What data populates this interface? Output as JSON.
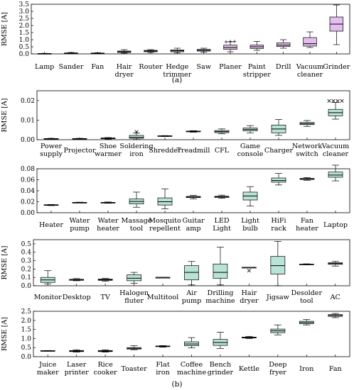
{
  "colors": {
    "purple_box": "#e3bfee",
    "green_box": "#b8e3d6",
    "median": "#000000",
    "frame": "#000000"
  },
  "subfigure_labels": [
    "(a)",
    "(b)"
  ],
  "chart_data": [
    {
      "type": "boxplot",
      "ylabel": "RMSE [A]",
      "ylim": [
        0,
        3.5
      ],
      "yticks": [
        "0.0",
        "0.5",
        "1.0",
        "1.5",
        "2.0",
        "2.5",
        "3.0",
        "3.5"
      ],
      "box_color": "#e3bfee",
      "categories": [
        "Lamp",
        "Sander",
        "Fan",
        "Hair dryer",
        "Router",
        "Hedge trimmer",
        "Saw",
        "Planer",
        "Paint stripper",
        "Drill",
        "Vacuum cleaner",
        "Grinder"
      ],
      "boxes": [
        {
          "min": 0.0,
          "q1": 0.01,
          "median": 0.02,
          "q3": 0.03,
          "max": 0.04,
          "outliers": []
        },
        {
          "min": 0.02,
          "q1": 0.04,
          "median": 0.05,
          "q3": 0.07,
          "max": 0.1,
          "outliers": []
        },
        {
          "min": 0.02,
          "q1": 0.03,
          "median": 0.05,
          "q3": 0.06,
          "max": 0.08,
          "outliers": []
        },
        {
          "min": 0.05,
          "q1": 0.1,
          "median": 0.15,
          "q3": 0.2,
          "max": 0.3,
          "outliers": []
        },
        {
          "min": 0.1,
          "q1": 0.15,
          "median": 0.2,
          "q3": 0.25,
          "max": 0.3,
          "outliers": []
        },
        {
          "min": 0.08,
          "q1": 0.15,
          "median": 0.22,
          "q3": 0.28,
          "max": 0.4,
          "outliers": []
        },
        {
          "min": 0.12,
          "q1": 0.2,
          "median": 0.25,
          "q3": 0.32,
          "max": 0.4,
          "outliers": []
        },
        {
          "min": 0.15,
          "q1": 0.32,
          "median": 0.45,
          "q3": 0.62,
          "max": 0.85,
          "outliers": [
            0.85,
            0.88,
            0.88
          ]
        },
        {
          "min": 0.25,
          "q1": 0.38,
          "median": 0.5,
          "q3": 0.62,
          "max": 0.88,
          "outliers": []
        },
        {
          "min": 0.4,
          "q1": 0.52,
          "median": 0.62,
          "q3": 0.78,
          "max": 1.0,
          "outliers": []
        },
        {
          "min": 0.45,
          "q1": 0.55,
          "median": 0.72,
          "q3": 1.15,
          "max": 1.55,
          "outliers": []
        },
        {
          "min": 0.65,
          "q1": 1.6,
          "median": 2.1,
          "q3": 2.6,
          "max": 3.45,
          "outliers": []
        }
      ]
    },
    {
      "type": "boxplot",
      "ylabel": "RMSE [A]",
      "ylim": [
        0,
        0.025
      ],
      "yticks": [
        "0.00",
        "0.01",
        "0.02"
      ],
      "box_color": "#b8e3d6",
      "categories": [
        "Power supply",
        "Projector",
        "Shoe warmer",
        "Soldering iron",
        "Shredder",
        "Treadmill",
        "CFL",
        "Game console",
        "Charger",
        "Network switch",
        "Vacuum cleaner"
      ],
      "boxes": [
        {
          "min": 0.0003,
          "q1": 0.0004,
          "median": 0.0005,
          "q3": 0.0006,
          "max": 0.0007,
          "outliers": []
        },
        {
          "min": 0.0003,
          "q1": 0.0004,
          "median": 0.0005,
          "q3": 0.0006,
          "max": 0.0007,
          "outliers": []
        },
        {
          "min": 0.0003,
          "q1": 0.0005,
          "median": 0.0007,
          "q3": 0.0009,
          "max": 0.0011,
          "outliers": []
        },
        {
          "min": 0.0001,
          "q1": 0.0007,
          "median": 0.0012,
          "q3": 0.0022,
          "max": 0.0035,
          "outliers": [
            0.004
          ]
        },
        {
          "min": 0.0016,
          "q1": 0.0018,
          "median": 0.0019,
          "q3": 0.002,
          "max": 0.0021,
          "outliers": []
        },
        {
          "min": 0.0038,
          "q1": 0.004,
          "median": 0.0042,
          "q3": 0.0044,
          "max": 0.0046,
          "outliers": []
        },
        {
          "min": 0.003,
          "q1": 0.0036,
          "median": 0.0041,
          "q3": 0.0047,
          "max": 0.0055,
          "outliers": []
        },
        {
          "min": 0.0035,
          "q1": 0.0045,
          "median": 0.0052,
          "q3": 0.006,
          "max": 0.0072,
          "outliers": []
        },
        {
          "min": 0.0022,
          "q1": 0.0035,
          "median": 0.0055,
          "q3": 0.0075,
          "max": 0.0103,
          "outliers": []
        },
        {
          "min": 0.0068,
          "q1": 0.0077,
          "median": 0.0082,
          "q3": 0.0088,
          "max": 0.0098,
          "outliers": []
        },
        {
          "min": 0.0105,
          "q1": 0.0122,
          "median": 0.0138,
          "q3": 0.0155,
          "max": 0.019,
          "outliers": [
            0.0198,
            0.0198,
            0.0198,
            0.0198
          ]
        }
      ]
    },
    {
      "type": "boxplot",
      "ylabel": "",
      "ylim": [
        0,
        0.08
      ],
      "yticks": [
        "0.00",
        "0.02",
        "0.04",
        "0.06",
        "0.08"
      ],
      "box_color": "#b8e3d6",
      "categories": [
        "Heater",
        "Water pump",
        "Water heater",
        "Massage tool",
        "Mosquito repellent",
        "Guitar amp",
        "LED Light",
        "Light bulb",
        "HiFi rack",
        "Fan heater",
        "Laptop"
      ],
      "boxes": [
        {
          "min": 0.013,
          "q1": 0.0138,
          "median": 0.0142,
          "q3": 0.0146,
          "max": 0.015,
          "outliers": []
        },
        {
          "min": 0.0178,
          "q1": 0.0182,
          "median": 0.0185,
          "q3": 0.0188,
          "max": 0.0192,
          "outliers": []
        },
        {
          "min": 0.0172,
          "q1": 0.0178,
          "median": 0.0183,
          "q3": 0.0188,
          "max": 0.0195,
          "outliers": []
        },
        {
          "min": 0.01,
          "q1": 0.016,
          "median": 0.0205,
          "q3": 0.025,
          "max": 0.0375,
          "outliers": []
        },
        {
          "min": 0.007,
          "q1": 0.014,
          "median": 0.02,
          "q3": 0.027,
          "max": 0.0435,
          "outliers": []
        },
        {
          "min": 0.025,
          "q1": 0.0275,
          "median": 0.0285,
          "q3": 0.0298,
          "max": 0.0315,
          "outliers": []
        },
        {
          "min": 0.0262,
          "q1": 0.0278,
          "median": 0.0288,
          "q3": 0.03,
          "max": 0.032,
          "outliers": []
        },
        {
          "min": 0.012,
          "q1": 0.0232,
          "median": 0.0305,
          "q3": 0.0375,
          "max": 0.0475,
          "outliers": []
        },
        {
          "min": 0.0505,
          "q1": 0.0555,
          "median": 0.0585,
          "q3": 0.0632,
          "max": 0.0715,
          "outliers": []
        },
        {
          "min": 0.059,
          "q1": 0.0605,
          "median": 0.0615,
          "q3": 0.0625,
          "max": 0.064,
          "outliers": []
        },
        {
          "min": 0.058,
          "q1": 0.0645,
          "median": 0.0685,
          "q3": 0.074,
          "max": 0.0865,
          "outliers": []
        }
      ]
    },
    {
      "type": "boxplot",
      "ylabel": "RMSE [A]",
      "ylim": [
        0,
        0.55
      ],
      "yticks": [
        "0.0",
        "0.1",
        "0.2",
        "0.3",
        "0.4",
        "0.5"
      ],
      "box_color": "#b8e3d6",
      "categories": [
        "Monitor",
        "Desktop",
        "TV",
        "Halogen fluter",
        "Multitool",
        "Air pump",
        "Drilling machine",
        "Hair dryer",
        "Jigsaw",
        "Desolder tool",
        "AC"
      ],
      "boxes": [
        {
          "min": 0.02,
          "q1": 0.04,
          "median": 0.07,
          "q3": 0.1,
          "max": 0.18,
          "outliers": []
        },
        {
          "min": 0.06,
          "q1": 0.065,
          "median": 0.07,
          "q3": 0.078,
          "max": 0.085,
          "outliers": []
        },
        {
          "min": 0.055,
          "q1": 0.065,
          "median": 0.072,
          "q3": 0.08,
          "max": 0.088,
          "outliers": []
        },
        {
          "min": 0.03,
          "q1": 0.06,
          "median": 0.09,
          "q3": 0.13,
          "max": 0.16,
          "outliers": []
        },
        {
          "min": 0.1,
          "q1": 0.1,
          "median": 0.1,
          "q3": 0.1,
          "max": 0.1,
          "outliers": []
        },
        {
          "min": 0.01,
          "q1": 0.07,
          "median": 0.16,
          "q3": 0.24,
          "max": 0.29,
          "outliers": []
        },
        {
          "min": 0.01,
          "q1": 0.09,
          "median": 0.16,
          "q3": 0.26,
          "max": 0.46,
          "outliers": []
        },
        {
          "min": 0.22,
          "q1": 0.22,
          "median": 0.22,
          "q3": 0.22,
          "max": 0.22,
          "outliers": [
            0.18
          ]
        },
        {
          "min": 0.0,
          "q1": 0.14,
          "median": 0.24,
          "q3": 0.35,
          "max": 0.53,
          "outliers": []
        },
        {
          "min": 0.25,
          "q1": 0.252,
          "median": 0.255,
          "q3": 0.258,
          "max": 0.262,
          "outliers": []
        },
        {
          "min": 0.235,
          "q1": 0.255,
          "median": 0.265,
          "q3": 0.275,
          "max": 0.29,
          "outliers": []
        }
      ]
    },
    {
      "type": "boxplot",
      "ylabel": "RMSE [A]",
      "ylim": [
        0,
        2.5
      ],
      "yticks": [
        "0.0",
        "0.5",
        "1.0",
        "1.5",
        "2.0",
        "2.5"
      ],
      "box_color": "#b8e3d6",
      "categories": [
        "Juice maker",
        "Laser printer",
        "Rice cooker",
        "Toaster",
        "Flat iron",
        "Coffee machine",
        "Bench grinder",
        "Kettle",
        "Deep fryer",
        "Iron",
        "Fan"
      ],
      "boxes": [
        {
          "min": 0.3,
          "q1": 0.31,
          "median": 0.32,
          "q3": 0.33,
          "max": 0.34,
          "outliers": []
        },
        {
          "min": 0.25,
          "q1": 0.28,
          "median": 0.31,
          "q3": 0.34,
          "max": 0.38,
          "outliers": []
        },
        {
          "min": 0.25,
          "q1": 0.28,
          "median": 0.31,
          "q3": 0.34,
          "max": 0.38,
          "outliers": []
        },
        {
          "min": 0.38,
          "q1": 0.42,
          "median": 0.46,
          "q3": 0.5,
          "max": 0.6,
          "outliers": []
        },
        {
          "min": 0.52,
          "q1": 0.55,
          "median": 0.57,
          "q3": 0.59,
          "max": 0.61,
          "outliers": []
        },
        {
          "min": 0.48,
          "q1": 0.6,
          "median": 0.7,
          "q3": 0.82,
          "max": 1.05,
          "outliers": []
        },
        {
          "min": 0.45,
          "q1": 0.62,
          "median": 0.78,
          "q3": 0.95,
          "max": 1.35,
          "outliers": []
        },
        {
          "min": 1.0,
          "q1": 1.03,
          "median": 1.05,
          "q3": 1.08,
          "max": 1.12,
          "outliers": []
        },
        {
          "min": 1.2,
          "q1": 1.32,
          "median": 1.42,
          "q3": 1.52,
          "max": 1.75,
          "outliers": []
        },
        {
          "min": 1.75,
          "q1": 1.82,
          "median": 1.88,
          "q3": 1.95,
          "max": 2.05,
          "outliers": []
        },
        {
          "min": 2.15,
          "q1": 2.22,
          "median": 2.27,
          "q3": 2.32,
          "max": 2.38,
          "outliers": []
        }
      ]
    }
  ]
}
